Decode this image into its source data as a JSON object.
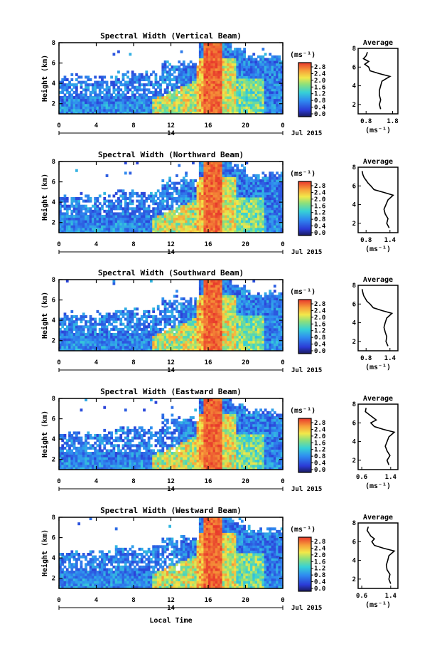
{
  "chart_data": [
    {
      "type": "heatmap",
      "title": "Spectral Width (Vertical Beam)",
      "ylabel": "Height (km)",
      "ylim": [
        1,
        8
      ],
      "yticks": [
        2,
        4,
        6,
        8
      ],
      "xlabel": "",
      "xlim": [
        0,
        24
      ],
      "xticks": [
        "0",
        "4",
        "8",
        "12",
        "16",
        "20",
        "0"
      ],
      "date_marker": "14",
      "date_label": "Jul 2015",
      "colorbar": {
        "unit": "(ms⁻¹)",
        "ticks": [
          "2.8",
          "2.4",
          "2.0",
          "1.6",
          "1.2",
          "0.8",
          "0.4",
          "0.0"
        ],
        "range": [
          0,
          3.0
        ]
      },
      "average_profile": {
        "title": "Average",
        "xlabel": "(ms⁻¹)",
        "xticks": [
          "0.8",
          "1.8"
        ],
        "xlim": [
          0.5,
          2.0
        ],
        "ylim": [
          1,
          8
        ],
        "yticks": [
          2,
          4,
          6,
          8
        ],
        "height": [
          1.5,
          2.0,
          2.5,
          3.0,
          3.5,
          4.0,
          4.5,
          5.0,
          5.3,
          5.6,
          6.0,
          6.3,
          6.6,
          6.9,
          7.2,
          7.6
        ],
        "value": [
          1.35,
          1.3,
          1.35,
          1.3,
          1.3,
          1.35,
          1.4,
          1.7,
          1.3,
          0.95,
          0.9,
          0.75,
          0.9,
          0.7,
          0.8,
          0.85
        ]
      }
    },
    {
      "type": "heatmap",
      "title": "Spectral Width (Northward Beam)",
      "ylabel": "Height (km)",
      "ylim": [
        1,
        8
      ],
      "yticks": [
        2,
        4,
        6,
        8
      ],
      "xlabel": "",
      "xlim": [
        0,
        24
      ],
      "xticks": [
        "0",
        "4",
        "8",
        "12",
        "16",
        "20",
        "0"
      ],
      "date_marker": "14",
      "date_label": "Jul 2015",
      "colorbar": {
        "unit": "(ms⁻¹)",
        "ticks": [
          "2.8",
          "2.4",
          "2.0",
          "1.6",
          "1.2",
          "0.8",
          "0.4",
          "0.0"
        ],
        "range": [
          0,
          3.0
        ]
      },
      "average_profile": {
        "title": "Average",
        "xlabel": "(ms⁻¹)",
        "xticks": [
          "0.8",
          "1.4"
        ],
        "xlim": [
          0.6,
          1.6
        ],
        "ylim": [
          1,
          8
        ],
        "yticks": [
          2,
          4,
          6,
          8
        ],
        "height": [
          1.5,
          2.0,
          2.5,
          3.0,
          3.5,
          4.0,
          4.5,
          5.0,
          5.3,
          5.6,
          6.0,
          6.3,
          6.6,
          6.9,
          7.2,
          7.6
        ],
        "value": [
          1.38,
          1.32,
          1.35,
          1.28,
          1.25,
          1.3,
          1.35,
          1.48,
          1.25,
          1.0,
          0.92,
          0.85,
          0.8,
          0.75,
          0.72,
          0.7
        ]
      }
    },
    {
      "type": "heatmap",
      "title": "Spectral Width (Southward Beam)",
      "ylabel": "Height (km)",
      "ylim": [
        1,
        8
      ],
      "yticks": [
        2,
        4,
        6,
        8
      ],
      "xlabel": "",
      "xlim": [
        0,
        24
      ],
      "xticks": [
        "0",
        "4",
        "8",
        "12",
        "16",
        "20",
        "0"
      ],
      "date_marker": "14",
      "date_label": "Jul 2015",
      "colorbar": {
        "unit": "(ms⁻¹)",
        "ticks": [
          "2.8",
          "2.4",
          "2.0",
          "1.6",
          "1.2",
          "0.8",
          "0.4",
          "0.0"
        ],
        "range": [
          0,
          3.0
        ]
      },
      "average_profile": {
        "title": "Average",
        "xlabel": "(ms⁻¹)",
        "xticks": [
          "0.8",
          "1.4"
        ],
        "xlim": [
          0.6,
          1.6
        ],
        "ylim": [
          1,
          8
        ],
        "yticks": [
          2,
          4,
          6,
          8
        ],
        "height": [
          1.5,
          2.0,
          2.5,
          3.0,
          3.5,
          4.0,
          4.5,
          5.0,
          5.3,
          5.6,
          6.0,
          6.3,
          6.6,
          6.9,
          7.2,
          7.6
        ],
        "value": [
          1.35,
          1.3,
          1.32,
          1.28,
          1.25,
          1.28,
          1.32,
          1.45,
          1.2,
          0.98,
          0.9,
          0.82,
          0.78,
          0.74,
          0.72,
          0.7
        ]
      }
    },
    {
      "type": "heatmap",
      "title": "Spectral Width (Eastward Beam)",
      "ylabel": "Height (km)",
      "ylim": [
        1,
        8
      ],
      "yticks": [
        2,
        4,
        6,
        8
      ],
      "xlabel": "",
      "xlim": [
        0,
        24
      ],
      "xticks": [
        "0",
        "4",
        "8",
        "12",
        "16",
        "20",
        "0"
      ],
      "date_marker": "14",
      "date_label": "Jul 2015",
      "colorbar": {
        "unit": "(ms⁻¹)",
        "ticks": [
          "2.8",
          "2.4",
          "2.0",
          "1.6",
          "1.2",
          "0.8",
          "0.4",
          "0.0"
        ],
        "range": [
          0,
          3.0
        ]
      },
      "average_profile": {
        "title": "Average",
        "xlabel": "(ms⁻¹)",
        "xticks": [
          "0.6",
          "1.4"
        ],
        "xlim": [
          0.5,
          1.6
        ],
        "ylim": [
          1,
          8
        ],
        "yticks": [
          2,
          4,
          6,
          8
        ],
        "height": [
          1.5,
          2.0,
          2.5,
          3.0,
          3.5,
          4.0,
          4.5,
          5.0,
          5.3,
          5.6,
          6.0,
          6.3,
          6.6,
          6.9,
          7.2,
          7.6
        ],
        "value": [
          1.35,
          1.3,
          1.38,
          1.3,
          1.25,
          1.3,
          1.35,
          1.5,
          1.2,
          0.95,
          0.85,
          1.0,
          0.9,
          0.8,
          0.7,
          0.72
        ]
      }
    },
    {
      "type": "heatmap",
      "title": "Spectral Width (Westward Beam)",
      "ylabel": "Height (km)",
      "ylim": [
        1,
        8
      ],
      "yticks": [
        2,
        4,
        6,
        8
      ],
      "xlabel": "Local Time",
      "xlim": [
        0,
        24
      ],
      "xticks": [
        "0",
        "4",
        "8",
        "12",
        "16",
        "20",
        "0"
      ],
      "date_marker": "14",
      "date_label": "Jul 2015",
      "colorbar": {
        "unit": "(ms⁻¹)",
        "ticks": [
          "2.8",
          "2.4",
          "2.0",
          "1.6",
          "1.2",
          "0.8",
          "0.4",
          "0.0"
        ],
        "range": [
          0,
          3.0
        ]
      },
      "average_profile": {
        "title": "Average",
        "xlabel": "(ms⁻¹)",
        "xticks": [
          "0.6",
          "1.4"
        ],
        "xlim": [
          0.5,
          1.6
        ],
        "ylim": [
          1,
          8
        ],
        "yticks": [
          2,
          4,
          6,
          8
        ],
        "height": [
          1.5,
          2.0,
          2.5,
          3.0,
          3.5,
          4.0,
          4.5,
          5.0,
          5.3,
          5.6,
          6.0,
          6.3,
          6.6,
          6.9,
          7.2,
          7.6
        ],
        "value": [
          1.4,
          1.35,
          1.38,
          1.3,
          1.28,
          1.32,
          1.35,
          1.5,
          1.2,
          0.95,
          0.88,
          0.95,
          0.85,
          0.8,
          0.75,
          0.78
        ]
      }
    }
  ]
}
